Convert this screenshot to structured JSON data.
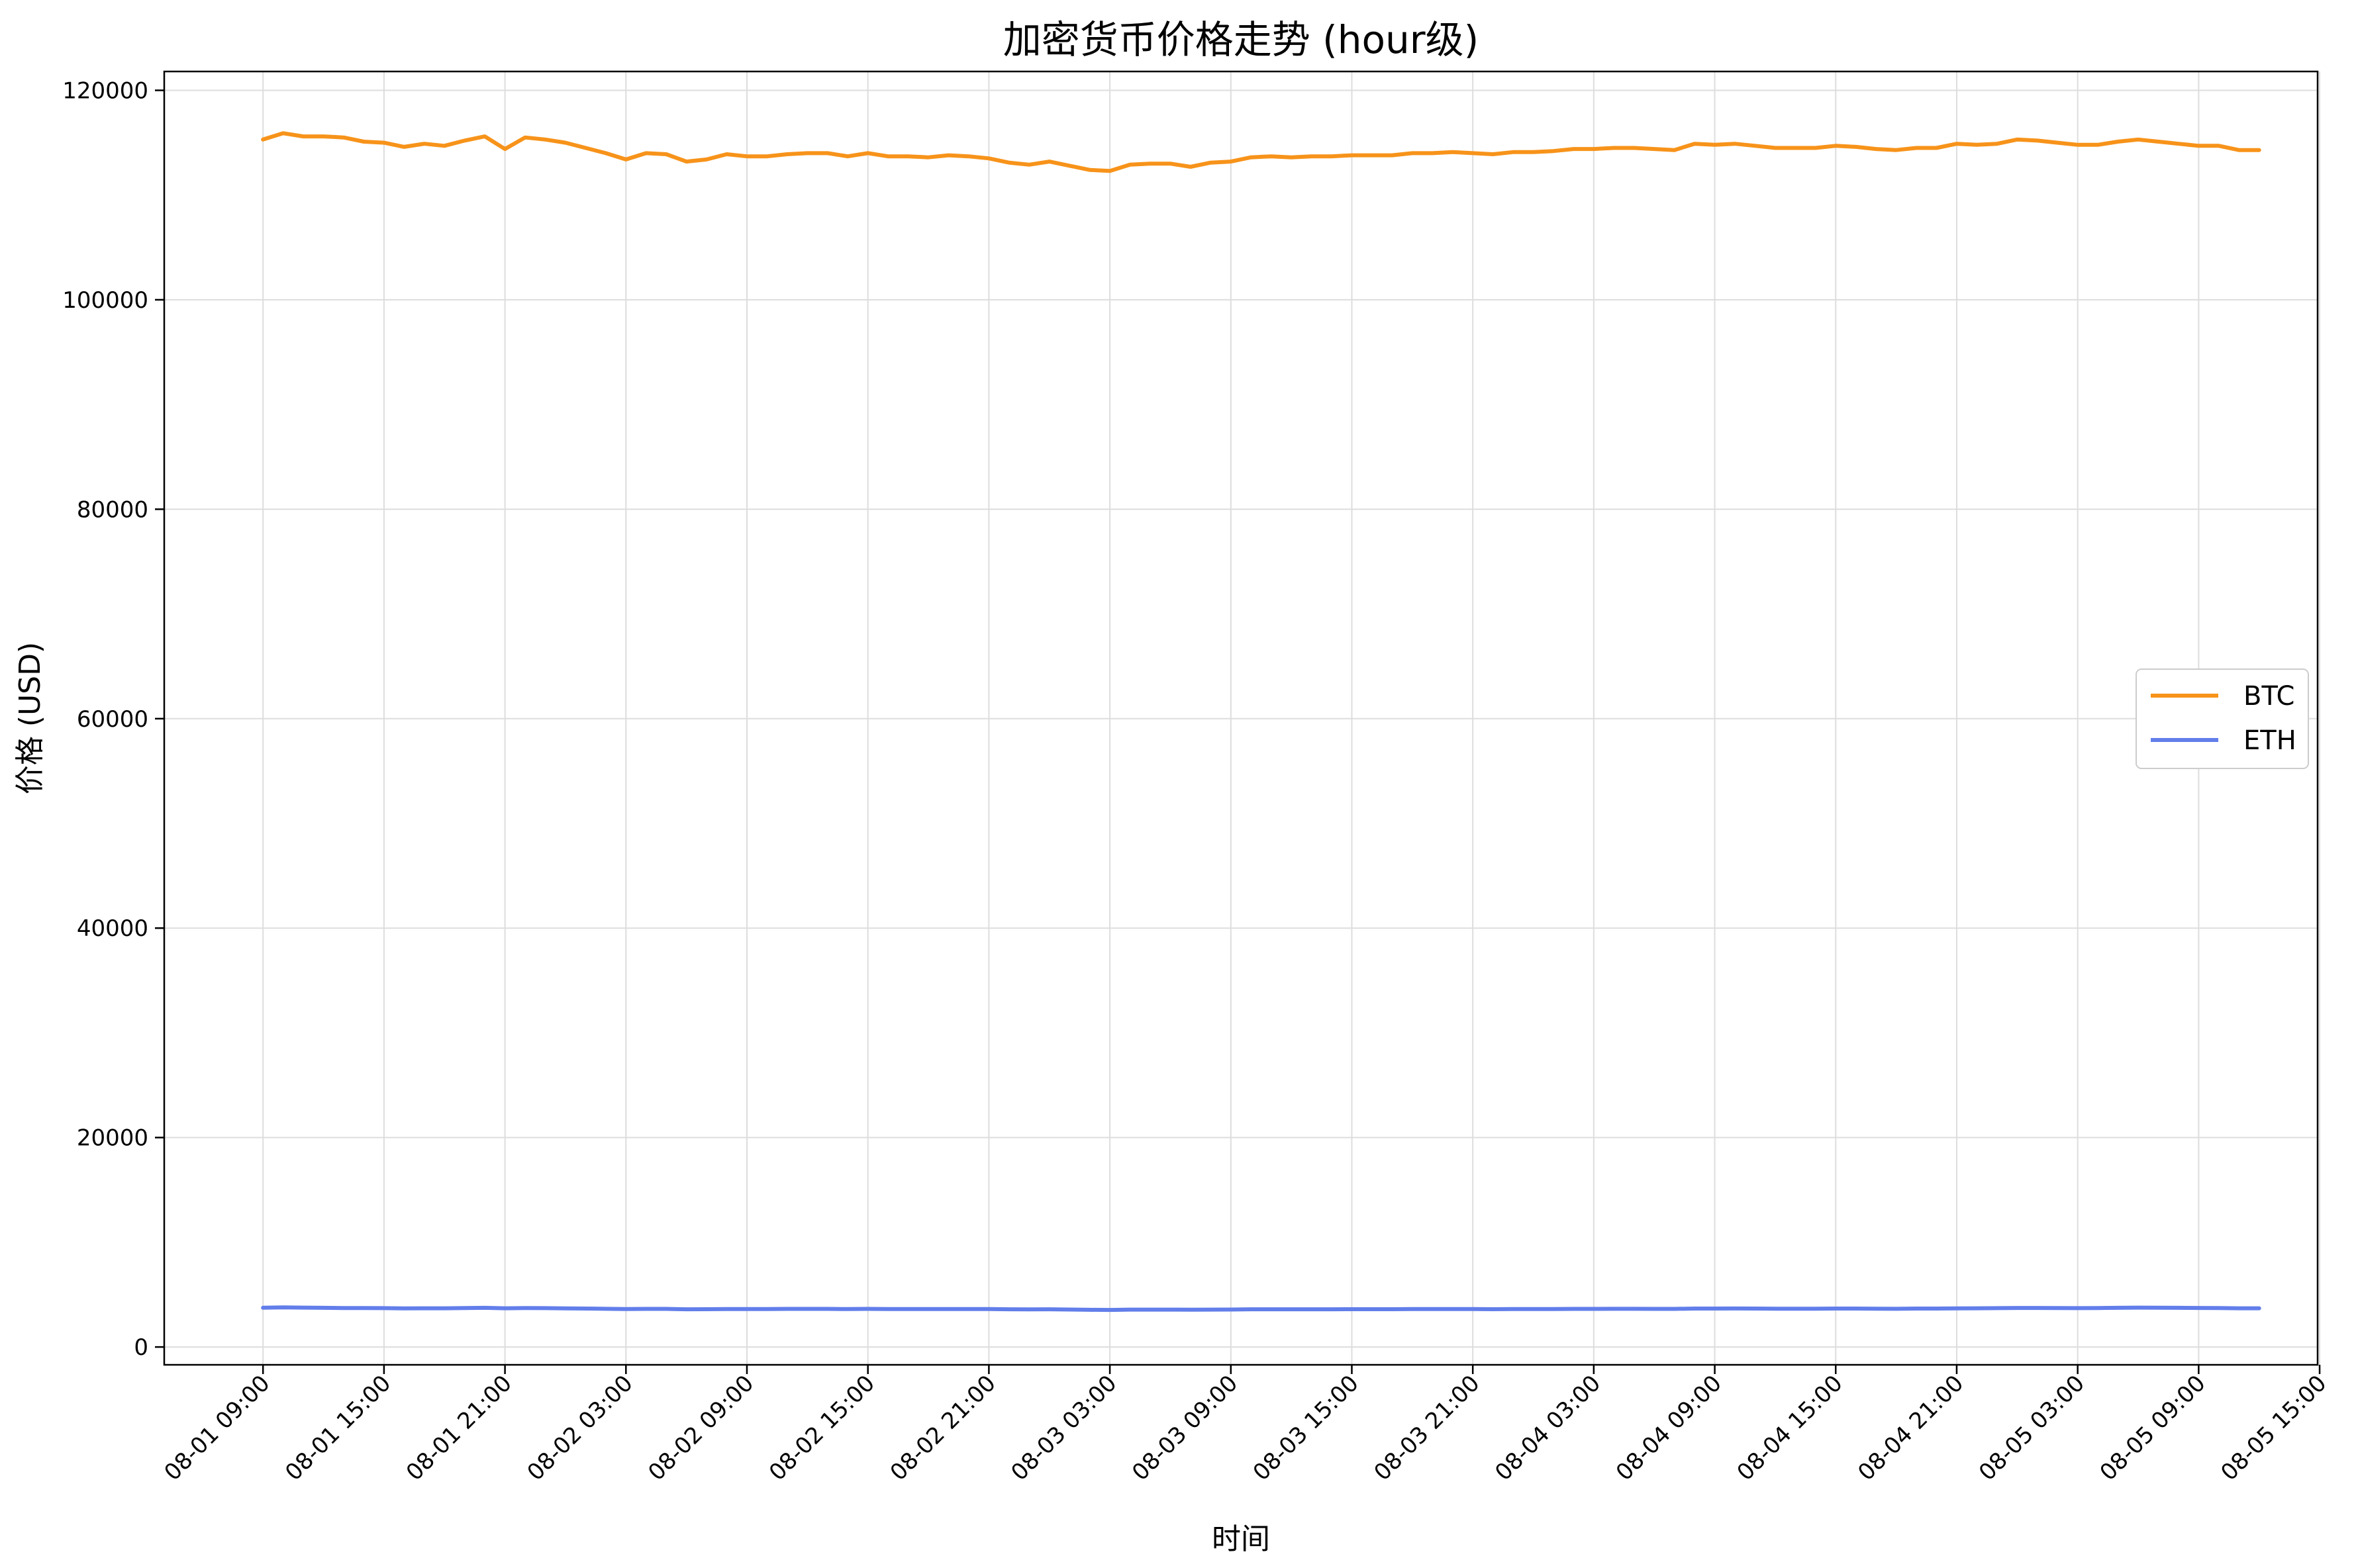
{
  "chart_data": {
    "type": "line",
    "title": "加密货币价格走势 (hour级)",
    "xlabel": "时间",
    "ylabel": "价格 (USD)",
    "ylim": [
      -1700,
      121800
    ],
    "xlim": [
      -4.9,
      101.9
    ],
    "x_unit": "hour",
    "x_start": "08-01 09:00",
    "grid": true,
    "legend_position": "right",
    "yticks": [
      0,
      20000,
      40000,
      60000,
      80000,
      100000,
      120000
    ],
    "ytick_labels": [
      "0",
      "20000",
      "40000",
      "60000",
      "80000",
      "100000",
      "120000"
    ],
    "xticks": [
      0,
      6,
      12,
      18,
      24,
      30,
      36,
      42,
      48,
      54,
      60,
      66,
      72,
      78,
      84,
      90,
      96,
      102
    ],
    "xtick_labels": [
      "08-01 09:00",
      "08-01 15:00",
      "08-01 21:00",
      "08-02 03:00",
      "08-02 09:00",
      "08-02 15:00",
      "08-02 21:00",
      "08-03 03:00",
      "08-03 09:00",
      "08-03 15:00",
      "08-03 21:00",
      "08-04 03:00",
      "08-04 09:00",
      "08-04 15:00",
      "08-04 21:00",
      "08-05 03:00",
      "08-05 09:00",
      "08-05 15:00"
    ],
    "series": [
      {
        "name": "BTC",
        "color": "#F7931A",
        "x_start_index": 0,
        "values": [
          115300,
          115900,
          115600,
          115600,
          115500,
          115100,
          115000,
          114600,
          114900,
          114700,
          115200,
          115600,
          114400,
          115500,
          115300,
          115000,
          114500,
          114000,
          113400,
          114000,
          113900,
          113200,
          113400,
          113900,
          113700,
          113700,
          113900,
          114000,
          114000,
          113700,
          114000,
          113700,
          113700,
          113600,
          113800,
          113700,
          113500,
          113100,
          112900,
          113200,
          112800,
          112400,
          112300,
          112900,
          113000,
          113000,
          112700,
          113100,
          113200,
          113600,
          113700,
          113600,
          113700,
          113700,
          113800,
          113800,
          113800,
          114000,
          114000,
          114100,
          114000,
          113900,
          114100,
          114100,
          114200,
          114400,
          114400,
          114500,
          114500,
          114400,
          114300,
          114900,
          114800,
          114900,
          114700,
          114500,
          114500,
          114500,
          114700,
          114600,
          114400,
          114300,
          114500,
          114500,
          114900,
          114800,
          114900,
          115300,
          115200,
          115000,
          114800,
          114800,
          115100,
          115300,
          115100,
          114900,
          114700,
          114700,
          114300,
          114300
        ]
      },
      {
        "name": "ETH",
        "color": "#627EEA",
        "x_start_index": 0,
        "values": [
          3750,
          3780,
          3760,
          3740,
          3720,
          3720,
          3710,
          3690,
          3700,
          3700,
          3720,
          3740,
          3700,
          3720,
          3710,
          3690,
          3670,
          3650,
          3630,
          3640,
          3640,
          3600,
          3610,
          3630,
          3630,
          3630,
          3640,
          3640,
          3640,
          3620,
          3640,
          3620,
          3620,
          3620,
          3630,
          3630,
          3620,
          3600,
          3590,
          3600,
          3580,
          3550,
          3540,
          3570,
          3570,
          3570,
          3560,
          3570,
          3580,
          3600,
          3600,
          3600,
          3600,
          3600,
          3610,
          3610,
          3610,
          3620,
          3620,
          3630,
          3620,
          3610,
          3620,
          3630,
          3630,
          3640,
          3640,
          3650,
          3650,
          3640,
          3640,
          3670,
          3670,
          3680,
          3670,
          3660,
          3660,
          3660,
          3670,
          3670,
          3660,
          3650,
          3670,
          3670,
          3690,
          3700,
          3710,
          3730,
          3730,
          3720,
          3710,
          3720,
          3740,
          3760,
          3750,
          3740,
          3730,
          3720,
          3700,
          3700
        ]
      }
    ]
  }
}
